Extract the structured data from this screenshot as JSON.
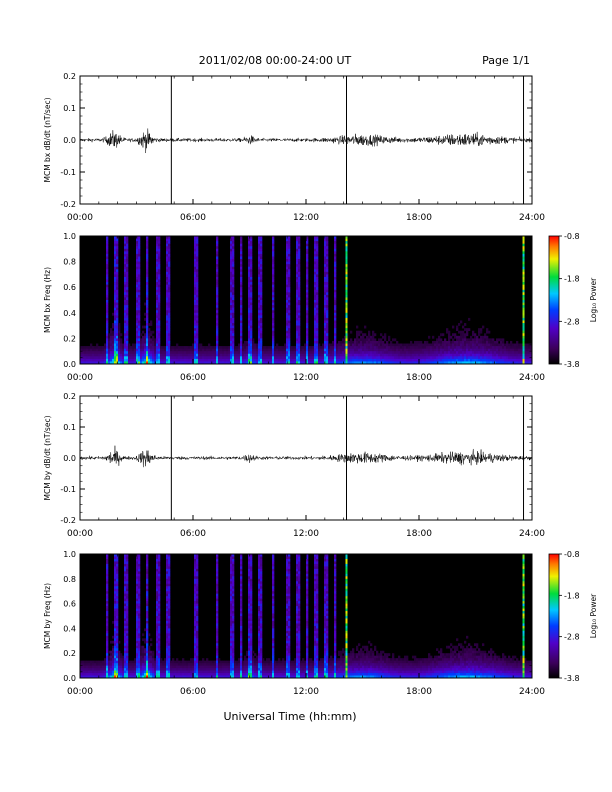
{
  "header": {
    "title": "2011/02/08  00:00-24:00 UT",
    "page": "Page 1/1"
  },
  "xlabel": "Universal Time (hh:mm)",
  "colorbar": {
    "label": "Log₁₀ Power",
    "ticks": [
      "-0.8",
      "-1.8",
      "-2.8",
      "-3.8"
    ],
    "range": [
      -3.8,
      -0.8
    ]
  },
  "chart_data": [
    {
      "type": "line",
      "ylabel": "MCM bx dB/dt (nT/sec)",
      "xlim": [
        0,
        24
      ],
      "ylim": [
        -0.2,
        0.2
      ],
      "x_ticks": [
        "00:00",
        "06:00",
        "12:00",
        "18:00",
        "24:00"
      ],
      "y_ticks": [
        "0.2",
        "0.1",
        "0.0",
        "-0.1",
        "-0.2"
      ],
      "spikes_hours": [
        4.85,
        14.15,
        23.55
      ]
    },
    {
      "type": "heatmap",
      "ylabel": "MCM bx Freq (Hz)",
      "xlim": [
        0,
        24
      ],
      "ylim": [
        0.0,
        1.0
      ],
      "x_ticks": [
        "00:00",
        "06:00",
        "12:00",
        "18:00",
        "24:00"
      ],
      "y_ticks": [
        "1.0",
        "0.8",
        "0.6",
        "0.4",
        "0.2",
        "0.0"
      ],
      "spikes_hours": [
        14.15,
        23.55
      ]
    },
    {
      "type": "line",
      "ylabel": "MCM by dB/dt (nT/sec)",
      "xlim": [
        0,
        24
      ],
      "ylim": [
        -0.2,
        0.2
      ],
      "x_ticks": [
        "00:00",
        "06:00",
        "12:00",
        "18:00",
        "24:00"
      ],
      "y_ticks": [
        "0.2",
        "0.1",
        "0.0",
        "-0.1",
        "-0.2"
      ],
      "spikes_hours": [
        4.85,
        14.15,
        23.55
      ]
    },
    {
      "type": "heatmap",
      "ylabel": "MCM by Freq (Hz)",
      "xlim": [
        0,
        24
      ],
      "ylim": [
        0.0,
        1.0
      ],
      "x_ticks": [
        "00:00",
        "06:00",
        "12:00",
        "18:00",
        "24:00"
      ],
      "y_ticks": [
        "1.0",
        "0.8",
        "0.6",
        "0.4",
        "0.2",
        "0.0"
      ],
      "spikes_hours": [
        14.15,
        23.55
      ]
    }
  ]
}
